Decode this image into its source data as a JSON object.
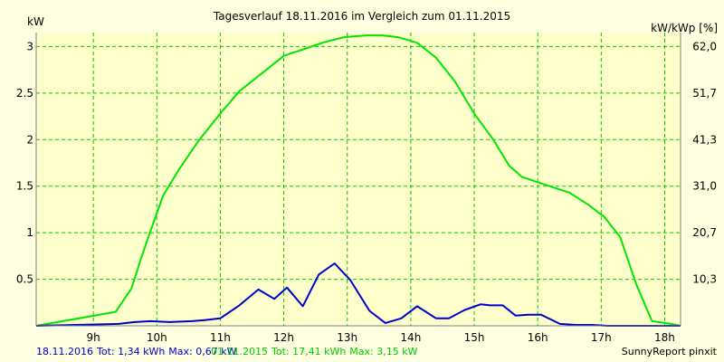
{
  "chart_data": {
    "type": "line",
    "title": "Tagesverlauf 18.11.2016 im Vergleich zum 01.11.2015",
    "ylabel_left": "kW",
    "ylabel_right": "kW/kWp [%]",
    "ylim": [
      0,
      3.15
    ],
    "yticks_left": [
      0.5,
      1,
      1.5,
      2,
      2.5,
      3
    ],
    "yticks_left_labels": [
      "0.5",
      "1",
      "1.5",
      "2",
      "2.5",
      "3"
    ],
    "yticks_right": [
      0.5,
      1,
      1.5,
      2,
      2.5,
      3
    ],
    "yticks_right_labels": [
      "10,3",
      "20,7",
      "31,0",
      "41,3",
      "51,7",
      "62,0"
    ],
    "xlim": [
      8.1,
      18.25
    ],
    "xticks": [
      9,
      10,
      11,
      12,
      13,
      14,
      15,
      16,
      17,
      18
    ],
    "xtick_labels": [
      "9h",
      "10h",
      "11h",
      "12h",
      "13h",
      "14h",
      "15h",
      "16h",
      "17h",
      "18h"
    ],
    "grid": true,
    "colors": {
      "background": "#ffffe1",
      "plot_bg": "#ffffcc",
      "grid": "#00cc00",
      "axis": "#808080",
      "text": "#000000"
    },
    "series": [
      {
        "color": "#00e600",
        "x": [
          8.1,
          9.35,
          9.6,
          9.75,
          9.9,
          10.1,
          10.35,
          10.65,
          11.0,
          11.3,
          11.65,
          12.0,
          12.35,
          12.65,
          12.95,
          13.3,
          13.55,
          13.8,
          14.1,
          14.4,
          14.7,
          15.0,
          15.3,
          15.55,
          15.75,
          16.1,
          16.5,
          16.8,
          17.05,
          17.3,
          17.55,
          17.8,
          18.1,
          18.25
        ],
        "y": [
          0.0,
          0.15,
          0.4,
          0.72,
          1.02,
          1.4,
          1.68,
          1.98,
          2.28,
          2.52,
          2.71,
          2.9,
          2.98,
          3.05,
          3.1,
          3.12,
          3.12,
          3.1,
          3.04,
          2.88,
          2.62,
          2.28,
          2.0,
          1.72,
          1.6,
          1.52,
          1.43,
          1.3,
          1.17,
          0.95,
          0.45,
          0.05,
          0.02,
          0.0
        ]
      },
      {
        "color": "#0000cc",
        "x": [
          8.1,
          9.4,
          9.65,
          9.9,
          10.2,
          10.55,
          10.75,
          11.0,
          11.3,
          11.6,
          11.85,
          12.05,
          12.3,
          12.55,
          12.8,
          13.05,
          13.35,
          13.6,
          13.85,
          14.1,
          14.4,
          14.6,
          14.85,
          15.1,
          15.25,
          15.45,
          15.65,
          15.85,
          16.05,
          16.35,
          16.6,
          16.85,
          17.1,
          17.5,
          18.0,
          18.25
        ],
        "y": [
          0.0,
          0.02,
          0.04,
          0.05,
          0.04,
          0.05,
          0.06,
          0.08,
          0.22,
          0.39,
          0.29,
          0.41,
          0.21,
          0.55,
          0.67,
          0.49,
          0.16,
          0.03,
          0.08,
          0.21,
          0.08,
          0.08,
          0.17,
          0.23,
          0.22,
          0.22,
          0.11,
          0.12,
          0.12,
          0.02,
          0.01,
          0.01,
          0.0,
          0.0,
          0.0,
          0.0
        ]
      }
    ]
  },
  "footer": {
    "series_blue": {
      "date": "18.11.2016",
      "tot": "Tot: 1,34 kWh",
      "max": "Max: 0,67 kW"
    },
    "series_green": {
      "date": "01.11.2015",
      "tot": "Tot: 17,41 kWh",
      "max": "Max: 3,15 kW"
    },
    "credit": "SunnyReport pinxit"
  }
}
